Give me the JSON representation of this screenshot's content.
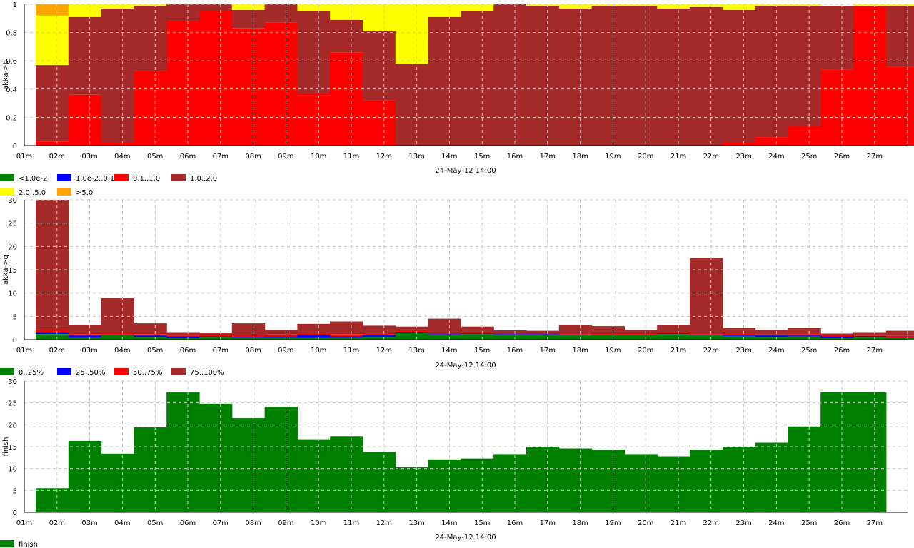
{
  "x_ticks": [
    "01m",
    "02m",
    "03m",
    "04m",
    "05m",
    "06m",
    "07m",
    "08m",
    "09m",
    "10m",
    "11m",
    "12m",
    "13m",
    "14m",
    "15m",
    "16m",
    "17m",
    "18m",
    "19m",
    "20m",
    "21m",
    "22m",
    "23m",
    "24m",
    "25m",
    "26m",
    "27m"
  ],
  "chart_data": [
    {
      "type": "area",
      "stacked": true,
      "ylabel": "akka->b",
      "xlabel": "24-May-12 14:00",
      "ylim": [
        0,
        1
      ],
      "y_ticks": [
        "0",
        "0.2",
        "0.4",
        "0.6",
        "0.8",
        "1"
      ],
      "grid": true,
      "legend": [
        {
          "name": "<1.0e-2",
          "color": "#008000"
        },
        {
          "name": "1.0e-2..0.1",
          "color": "#0000ff"
        },
        {
          "name": "0.1..1.0",
          "color": "#ff0000"
        },
        {
          "name": "1.0..2.0",
          "color": "#a52a2a"
        },
        {
          "name": "2.0..5.0",
          "color": "#ffff00"
        },
        {
          "name": ">5.0",
          "color": "#ffa500"
        }
      ],
      "series": [
        {
          "name": "<1.0e-2",
          "color": "#008000",
          "values": [
            0,
            0,
            0,
            0,
            0,
            0,
            0,
            0,
            0,
            0,
            0,
            0,
            0,
            0,
            0,
            0,
            0,
            0,
            0,
            0,
            0,
            0,
            0,
            0,
            0,
            0,
            0
          ]
        },
        {
          "name": "1.0e-2..0.1",
          "color": "#0000ff",
          "values": [
            0,
            0,
            0,
            0,
            0,
            0,
            0,
            0,
            0,
            0,
            0,
            0,
            0,
            0,
            0,
            0,
            0,
            0,
            0,
            0,
            0,
            0,
            0,
            0,
            0,
            0,
            0
          ]
        },
        {
          "name": "0.1..1.0",
          "color": "#ff0000",
          "values": [
            0.03,
            0.36,
            0.02,
            0.53,
            0.88,
            0.95,
            0.83,
            0.87,
            0.37,
            0.66,
            0.32,
            0,
            0,
            0,
            0,
            0,
            0,
            0,
            0,
            0,
            0,
            0.02,
            0.06,
            0.14,
            0.54,
            0.98,
            0.56
          ]
        },
        {
          "name": "1.0..2.0",
          "color": "#a52a2a",
          "values": [
            0.54,
            0.55,
            0.95,
            0.46,
            0.12,
            0.05,
            0.13,
            0.13,
            0.58,
            0.23,
            0.49,
            0.58,
            0.91,
            0.95,
            1.0,
            0.99,
            0.97,
            0.99,
            0.99,
            0.97,
            0.98,
            0.94,
            0.93,
            0.85,
            0.45,
            0.01,
            0.43
          ]
        },
        {
          "name": "2.0..5.0",
          "color": "#ffff00",
          "values": [
            0.35,
            0.09,
            0.03,
            0.01,
            0,
            0,
            0.04,
            0,
            0.05,
            0.11,
            0.19,
            0.42,
            0.09,
            0.05,
            0,
            0.01,
            0.03,
            0.01,
            0.01,
            0.03,
            0.02,
            0.04,
            0.01,
            0.01,
            0,
            0.01,
            0.01
          ]
        },
        {
          "name": ">5.0",
          "color": "#ffa500",
          "values": [
            0.08,
            0,
            0,
            0,
            0,
            0,
            0,
            0,
            0,
            0,
            0,
            0,
            0,
            0,
            0,
            0,
            0,
            0,
            0,
            0,
            0,
            0,
            0,
            0,
            0,
            0,
            0
          ]
        }
      ]
    },
    {
      "type": "area",
      "stacked": true,
      "ylabel": "akka->q",
      "xlabel": "24-May-12 14:00",
      "ylim": [
        0,
        30
      ],
      "y_ticks": [
        "0",
        "5",
        "10",
        "15",
        "20",
        "25",
        "30"
      ],
      "grid": true,
      "legend": [
        {
          "name": "0..25%",
          "color": "#008000"
        },
        {
          "name": "25..50%",
          "color": "#0000ff"
        },
        {
          "name": "50..75%",
          "color": "#ff0000"
        },
        {
          "name": "75..100%",
          "color": "#a52a2a"
        }
      ],
      "series": [
        {
          "name": "0..25%",
          "color": "#008000",
          "values": [
            1.2,
            0.5,
            1.0,
            0.6,
            0.4,
            0.6,
            0.5,
            0.5,
            0.5,
            0.5,
            0.6,
            1.5,
            1.0,
            1.2,
            1.0,
            1.0,
            0.9,
            1.0,
            1.0,
            1.2,
            0.9,
            0.8,
            0.6,
            0.7,
            0.4,
            0.6,
            0.4
          ]
        },
        {
          "name": "25..50%",
          "color": "#0000ff",
          "values": [
            0.4,
            0.4,
            0.1,
            0.3,
            0.3,
            0.1,
            0.1,
            0.2,
            0.5,
            0.2,
            0.5,
            0.1,
            0.2,
            0.1,
            0.2,
            0.2,
            0.2,
            0.1,
            0.1,
            0.1,
            0.2,
            0.2,
            0.3,
            0.2,
            0.3,
            0.2,
            0.1
          ]
        },
        {
          "name": "50..75%",
          "color": "#ff0000",
          "values": [
            0.5,
            0.3,
            0.4,
            0.3,
            0.2,
            0.3,
            0.4,
            0.4,
            0.4,
            0.5,
            0.3,
            0.4,
            0.2,
            0.2,
            0.2,
            0.2,
            0.2,
            0.3,
            0.3,
            0.3,
            0.2,
            0.3,
            0.2,
            0.3,
            0.3,
            0.2,
            0.3
          ]
        },
        {
          "name": "75..100%",
          "color": "#a52a2a",
          "values": [
            27.9,
            1.9,
            7.4,
            2.3,
            0.7,
            0.5,
            2.5,
            1.0,
            2.0,
            2.7,
            1.6,
            0.8,
            3.1,
            1.3,
            0.6,
            0.5,
            1.8,
            1.5,
            0.7,
            1.6,
            16.2,
            1.2,
            1.0,
            1.3,
            0.3,
            0.6,
            1.1
          ]
        }
      ]
    },
    {
      "type": "area",
      "ylabel": "finish",
      "xlabel": "24-May-12 14:00",
      "ylim": [
        0,
        30
      ],
      "y_ticks": [
        "0",
        "5",
        "10",
        "15",
        "20",
        "25",
        "30"
      ],
      "grid": true,
      "legend": [
        {
          "name": "finish",
          "color": "#008000"
        }
      ],
      "series": [
        {
          "name": "finish",
          "color": "#008000",
          "values": [
            5.5,
            16.3,
            13.4,
            19.4,
            27.5,
            24.8,
            21.5,
            24.1,
            16.7,
            17.4,
            13.8,
            10.3,
            12.1,
            12.3,
            13.3,
            15.0,
            14.6,
            14.3,
            13.3,
            12.8,
            14.3,
            15.0,
            15.9,
            19.6,
            27.4,
            27.4,
            0
          ]
        }
      ]
    }
  ]
}
